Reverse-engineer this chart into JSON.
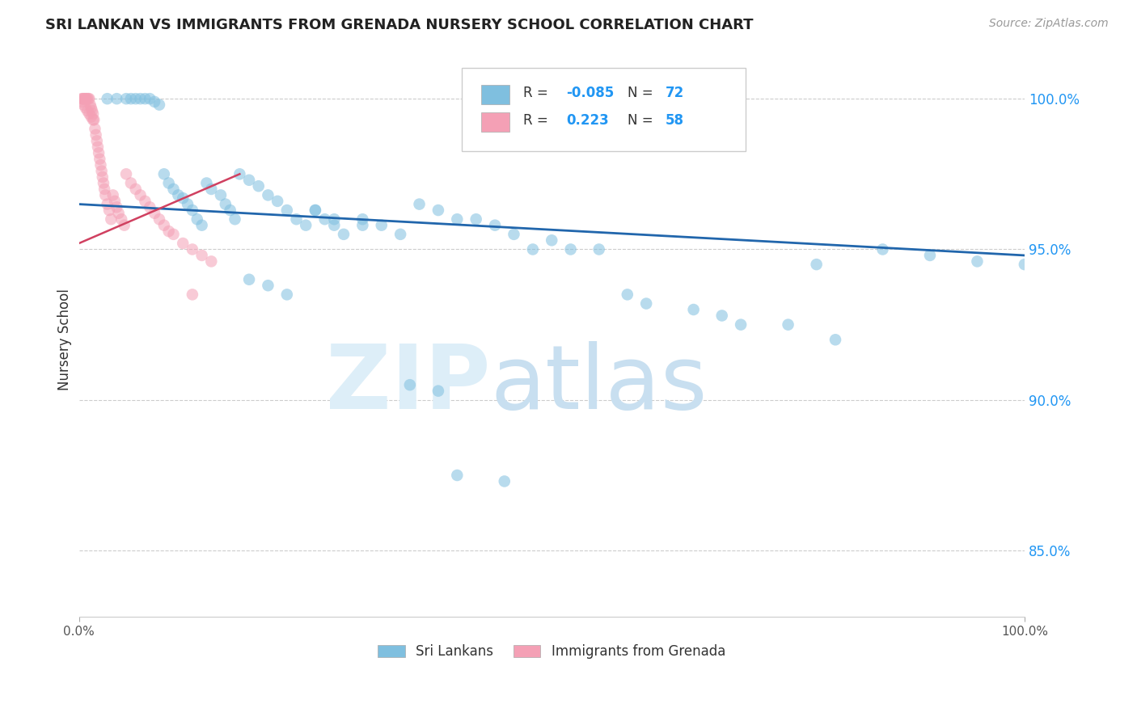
{
  "title": "SRI LANKAN VS IMMIGRANTS FROM GRENADA NURSERY SCHOOL CORRELATION CHART",
  "source": "Source: ZipAtlas.com",
  "ylabel": "Nursery School",
  "legend_blue_R": "-0.085",
  "legend_blue_N": "72",
  "legend_pink_R": "0.223",
  "legend_pink_N": "58",
  "blue_color": "#7fbfdf",
  "pink_color": "#f4a0b5",
  "trend_blue_color": "#2166ac",
  "trend_pink_color": "#d04060",
  "grid_color": "#cccccc",
  "watermark_zip": "ZIP",
  "watermark_atlas": "atlas",
  "watermark_color": "#ddeef8",
  "background_color": "#ffffff",
  "xlim": [
    0.0,
    1.0
  ],
  "ylim": [
    0.828,
    1.012
  ],
  "yticks": [
    0.85,
    0.9,
    0.95,
    1.0
  ],
  "ytick_labels": [
    "85.0%",
    "90.0%",
    "95.0%",
    "100.0%"
  ],
  "xtick_labels": [
    "0.0%",
    "100.0%"
  ],
  "xtick_positions": [
    0.0,
    1.0
  ],
  "scatter_size": 110,
  "scatter_alpha": 0.55,
  "blue_trend_x": [
    0.0,
    1.0
  ],
  "blue_trend_y": [
    0.965,
    0.948
  ],
  "pink_trend_x": [
    0.0,
    0.17
  ],
  "pink_trend_y": [
    0.952,
    0.975
  ],
  "sri_lankan_x": [
    0.03,
    0.04,
    0.05,
    0.055,
    0.06,
    0.065,
    0.07,
    0.075,
    0.08,
    0.085,
    0.09,
    0.095,
    0.1,
    0.105,
    0.11,
    0.115,
    0.12,
    0.125,
    0.13,
    0.135,
    0.14,
    0.15,
    0.155,
    0.16,
    0.165,
    0.17,
    0.18,
    0.19,
    0.2,
    0.21,
    0.22,
    0.23,
    0.24,
    0.25,
    0.26,
    0.27,
    0.28,
    0.3,
    0.32,
    0.34,
    0.36,
    0.38,
    0.4,
    0.42,
    0.44,
    0.46,
    0.48,
    0.5,
    0.52,
    0.55,
    0.58,
    0.6,
    0.65,
    0.68,
    0.7,
    0.75,
    0.8,
    0.85,
    0.9,
    0.95,
    1.0,
    0.78,
    0.18,
    0.2,
    0.22,
    0.25,
    0.27,
    0.3,
    0.35,
    0.38,
    0.4,
    0.45
  ],
  "sri_lankan_y": [
    1.0,
    1.0,
    1.0,
    1.0,
    1.0,
    1.0,
    1.0,
    1.0,
    0.999,
    0.998,
    0.975,
    0.972,
    0.97,
    0.968,
    0.967,
    0.965,
    0.963,
    0.96,
    0.958,
    0.972,
    0.97,
    0.968,
    0.965,
    0.963,
    0.96,
    0.975,
    0.973,
    0.971,
    0.968,
    0.966,
    0.963,
    0.96,
    0.958,
    0.963,
    0.96,
    0.958,
    0.955,
    0.96,
    0.958,
    0.955,
    0.965,
    0.963,
    0.96,
    0.96,
    0.958,
    0.955,
    0.95,
    0.953,
    0.95,
    0.95,
    0.935,
    0.932,
    0.93,
    0.928,
    0.925,
    0.925,
    0.92,
    0.95,
    0.948,
    0.946,
    0.945,
    0.945,
    0.94,
    0.938,
    0.935,
    0.963,
    0.96,
    0.958,
    0.905,
    0.903,
    0.875,
    0.873
  ],
  "grenada_x": [
    0.003,
    0.004,
    0.005,
    0.006,
    0.007,
    0.008,
    0.009,
    0.01,
    0.011,
    0.012,
    0.013,
    0.014,
    0.015,
    0.016,
    0.017,
    0.018,
    0.019,
    0.02,
    0.021,
    0.022,
    0.023,
    0.024,
    0.025,
    0.026,
    0.027,
    0.028,
    0.03,
    0.032,
    0.034,
    0.036,
    0.038,
    0.04,
    0.042,
    0.045,
    0.048,
    0.05,
    0.055,
    0.06,
    0.065,
    0.07,
    0.075,
    0.08,
    0.085,
    0.09,
    0.095,
    0.1,
    0.11,
    0.12,
    0.13,
    0.14,
    0.003,
    0.005,
    0.007,
    0.009,
    0.011,
    0.013,
    0.015,
    0.12
  ],
  "grenada_y": [
    1.0,
    1.0,
    1.0,
    1.0,
    1.0,
    1.0,
    1.0,
    1.0,
    1.0,
    0.998,
    0.997,
    0.996,
    0.995,
    0.993,
    0.99,
    0.988,
    0.986,
    0.984,
    0.982,
    0.98,
    0.978,
    0.976,
    0.974,
    0.972,
    0.97,
    0.968,
    0.965,
    0.963,
    0.96,
    0.968,
    0.966,
    0.964,
    0.962,
    0.96,
    0.958,
    0.975,
    0.972,
    0.97,
    0.968,
    0.966,
    0.964,
    0.962,
    0.96,
    0.958,
    0.956,
    0.955,
    0.952,
    0.95,
    0.948,
    0.946,
    0.999,
    0.998,
    0.997,
    0.996,
    0.995,
    0.994,
    0.993,
    0.935
  ]
}
